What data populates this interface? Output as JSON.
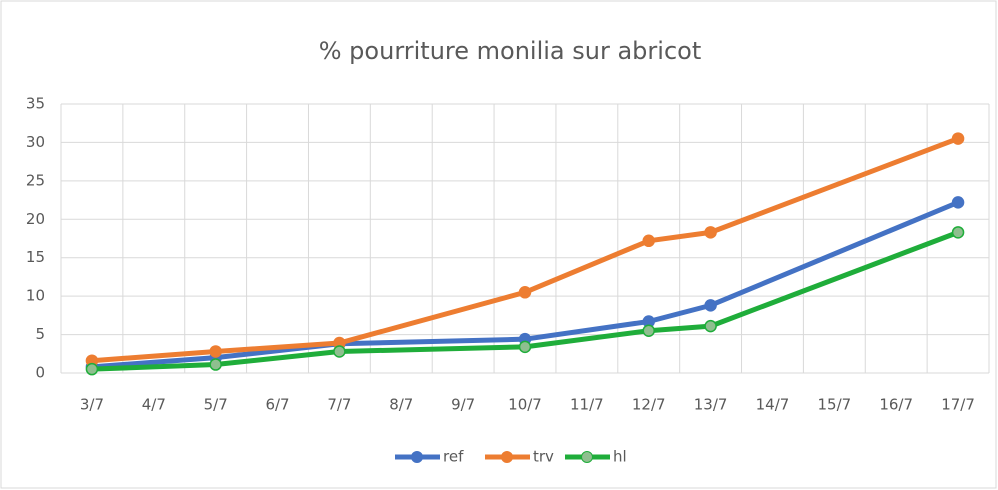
{
  "chart_data": {
    "type": "line",
    "title": "% pourriture monilia sur abricot",
    "categories": [
      "3/7",
      "4/7",
      "5/7",
      "6/7",
      "7/7",
      "8/7",
      "9/7",
      "10/7",
      "11/7",
      "12/7",
      "13/7",
      "14/7",
      "15/7",
      "16/7",
      "17/7"
    ],
    "x": [
      "3/7",
      "5/7",
      "7/7",
      "10/7",
      "12/7",
      "13/7",
      "17/7"
    ],
    "series": [
      {
        "name": "ref",
        "color": "#4472c4",
        "values": [
          0.8,
          2.0,
          3.8,
          4.4,
          6.7,
          8.8,
          22.2
        ]
      },
      {
        "name": "trv",
        "color": "#ed7d31",
        "values": [
          1.6,
          2.8,
          3.9,
          10.5,
          17.2,
          18.3,
          30.5
        ]
      },
      {
        "name": "hl",
        "color": "#1fad3a",
        "values": [
          0.5,
          1.1,
          2.8,
          3.4,
          5.5,
          6.1,
          18.3
        ]
      }
    ],
    "ylim": [
      0,
      35
    ],
    "yticks": [
      0,
      5,
      10,
      15,
      20,
      25,
      30,
      35
    ],
    "grid": true,
    "legend": "bottom"
  }
}
